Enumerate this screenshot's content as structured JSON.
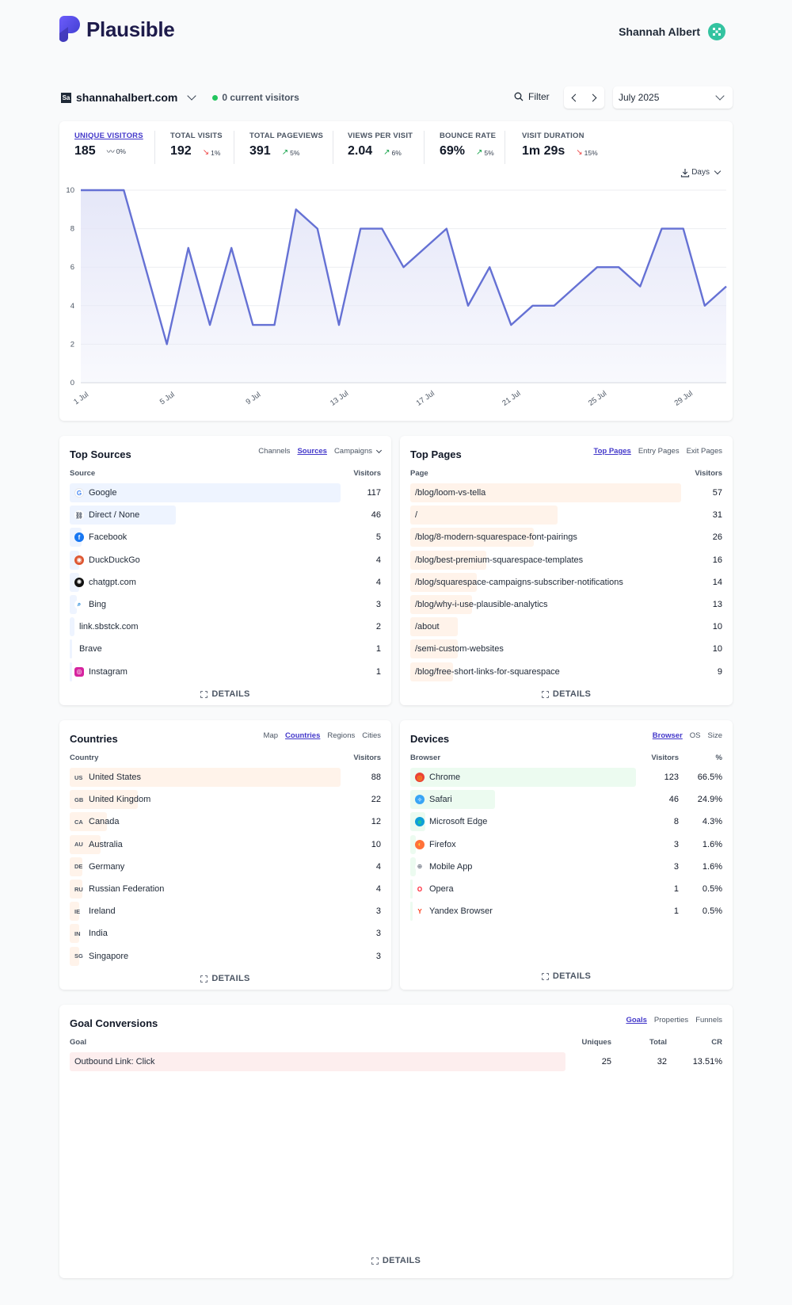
{
  "header": {
    "logo_text": "Plausible",
    "user_name": "Shannah Albert"
  },
  "topbar": {
    "site_favicon": "Sa",
    "site": "shannahalbert.com",
    "current_visitors": "0 current visitors",
    "filter_label": "Filter",
    "period": "July 2025"
  },
  "metrics": [
    {
      "label": "UNIQUE VISITORS",
      "value": "185",
      "change": "0%",
      "trend": "flat"
    },
    {
      "label": "TOTAL VISITS",
      "value": "192",
      "change": "1%",
      "trend": "down"
    },
    {
      "label": "TOTAL PAGEVIEWS",
      "value": "391",
      "change": "5%",
      "trend": "up"
    },
    {
      "label": "VIEWS PER VISIT",
      "value": "2.04",
      "change": "6%",
      "trend": "up"
    },
    {
      "label": "BOUNCE RATE",
      "value": "69%",
      "change": "5%",
      "trend": "up"
    },
    {
      "label": "VISIT DURATION",
      "value": "1m 29s",
      "change": "15%",
      "trend": "down"
    }
  ],
  "chart_controls": {
    "interval": "Days"
  },
  "chart_data": {
    "type": "area",
    "x": [
      "1 Jul",
      "2 Jul",
      "3 Jul",
      "4 Jul",
      "5 Jul",
      "6 Jul",
      "7 Jul",
      "8 Jul",
      "9 Jul",
      "10 Jul",
      "11 Jul",
      "12 Jul",
      "13 Jul",
      "14 Jul",
      "15 Jul",
      "16 Jul",
      "17 Jul",
      "18 Jul",
      "19 Jul",
      "20 Jul",
      "21 Jul",
      "22 Jul",
      "23 Jul",
      "24 Jul",
      "25 Jul",
      "26 Jul",
      "27 Jul",
      "28 Jul",
      "29 Jul",
      "30 Jul",
      "31 Jul"
    ],
    "values": [
      10,
      10,
      10,
      6,
      2,
      7,
      3,
      7,
      3,
      3,
      9,
      8,
      3,
      8,
      8,
      6,
      7,
      8,
      4,
      6,
      3,
      4,
      4,
      5,
      6,
      6,
      5,
      8,
      8,
      4,
      5
    ],
    "x_tick_labels": [
      "1 Jul",
      "5 Jul",
      "9 Jul",
      "13 Jul",
      "17 Jul",
      "21 Jul",
      "25 Jul",
      "29 Jul"
    ],
    "y_ticks": [
      0,
      2,
      4,
      6,
      8,
      10
    ],
    "ylim": [
      0,
      10
    ],
    "grid": true,
    "line_color": "#6571d4",
    "fill_color": "#e5e7f8"
  },
  "sources": {
    "title": "Top Sources",
    "tabs": [
      "Channels",
      "Sources",
      "Campaigns"
    ],
    "active_tab": "Sources",
    "col_label": "Source",
    "col_value": "Visitors",
    "max": 117,
    "rows": [
      {
        "label": "Google",
        "value": 117,
        "icon": "google-icon"
      },
      {
        "label": "Direct / None",
        "value": 46,
        "icon": "link-icon"
      },
      {
        "label": "Facebook",
        "value": 5,
        "icon": "facebook-icon"
      },
      {
        "label": "DuckDuckGo",
        "value": 4,
        "icon": "duckduckgo-icon"
      },
      {
        "label": "chatgpt.com",
        "value": 4,
        "icon": "chatgpt-icon"
      },
      {
        "label": "Bing",
        "value": 3,
        "icon": "bing-icon"
      },
      {
        "label": "link.sbstck.com",
        "value": 2,
        "icon": ""
      },
      {
        "label": "Brave",
        "value": 1,
        "icon": ""
      },
      {
        "label": "Instagram",
        "value": 1,
        "icon": "instagram-icon"
      }
    ],
    "details": "DETAILS"
  },
  "pages": {
    "title": "Top Pages",
    "tabs": [
      "Top Pages",
      "Entry Pages",
      "Exit Pages"
    ],
    "active_tab": "Top Pages",
    "col_label": "Page",
    "col_value": "Visitors",
    "max": 57,
    "rows": [
      {
        "label": "/blog/loom-vs-tella",
        "value": 57
      },
      {
        "label": "/",
        "value": 31
      },
      {
        "label": "/blog/8-modern-squarespace-font-pairings",
        "value": 26
      },
      {
        "label": "/blog/best-premium-squarespace-templates",
        "value": 16
      },
      {
        "label": "/blog/squarespace-campaigns-subscriber-notifications",
        "value": 14
      },
      {
        "label": "/blog/why-i-use-plausible-analytics",
        "value": 13
      },
      {
        "label": "/about",
        "value": 10
      },
      {
        "label": "/semi-custom-websites",
        "value": 10
      },
      {
        "label": "/blog/free-short-links-for-squarespace",
        "value": 9
      }
    ],
    "details": "DETAILS"
  },
  "countries": {
    "title": "Countries",
    "tabs": [
      "Map",
      "Countries",
      "Regions",
      "Cities"
    ],
    "active_tab": "Countries",
    "col_label": "Country",
    "col_value": "Visitors",
    "max": 88,
    "rows": [
      {
        "code": "US",
        "label": "United States",
        "value": 88
      },
      {
        "code": "GB",
        "label": "United Kingdom",
        "value": 22
      },
      {
        "code": "CA",
        "label": "Canada",
        "value": 12
      },
      {
        "code": "AU",
        "label": "Australia",
        "value": 10
      },
      {
        "code": "DE",
        "label": "Germany",
        "value": 4
      },
      {
        "code": "RU",
        "label": "Russian Federation",
        "value": 4
      },
      {
        "code": "IE",
        "label": "Ireland",
        "value": 3
      },
      {
        "code": "IN",
        "label": "India",
        "value": 3
      },
      {
        "code": "SG",
        "label": "Singapore",
        "value": 3
      }
    ],
    "details": "DETAILS"
  },
  "devices": {
    "title": "Devices",
    "tabs": [
      "Browser",
      "OS",
      "Size"
    ],
    "active_tab": "Browser",
    "col_label": "Browser",
    "col_value": "Visitors",
    "col_pct": "%",
    "max": 123,
    "rows": [
      {
        "label": "Chrome",
        "value": 123,
        "pct": "66.5%",
        "icon": "chrome-icon"
      },
      {
        "label": "Safari",
        "value": 46,
        "pct": "24.9%",
        "icon": "safari-icon"
      },
      {
        "label": "Microsoft Edge",
        "value": 8,
        "pct": "4.3%",
        "icon": "edge-icon"
      },
      {
        "label": "Firefox",
        "value": 3,
        "pct": "1.6%",
        "icon": "firefox-icon"
      },
      {
        "label": "Mobile App",
        "value": 3,
        "pct": "1.6%",
        "icon": "globe-icon"
      },
      {
        "label": "Opera",
        "value": 1,
        "pct": "0.5%",
        "icon": "opera-icon"
      },
      {
        "label": "Yandex Browser",
        "value": 1,
        "pct": "0.5%",
        "icon": "yandex-icon"
      }
    ],
    "details": "DETAILS"
  },
  "goals": {
    "title": "Goal Conversions",
    "tabs": [
      "Goals",
      "Properties",
      "Funnels"
    ],
    "active_tab": "Goals",
    "col_label": "Goal",
    "col_uniques": "Uniques",
    "col_total": "Total",
    "col_cr": "CR",
    "rows": [
      {
        "label": "Outbound Link: Click",
        "uniques": 25,
        "total": 32,
        "cr": "13.51%"
      }
    ],
    "details": "DETAILS"
  },
  "colors": {
    "accent": "#4338ca",
    "source_bar": "#eef4ff",
    "page_bar": "#fff3ea",
    "country_bar": "#fff3ea",
    "device_bar": "#ecfbf0",
    "goal_bar": "#fdeeee"
  }
}
